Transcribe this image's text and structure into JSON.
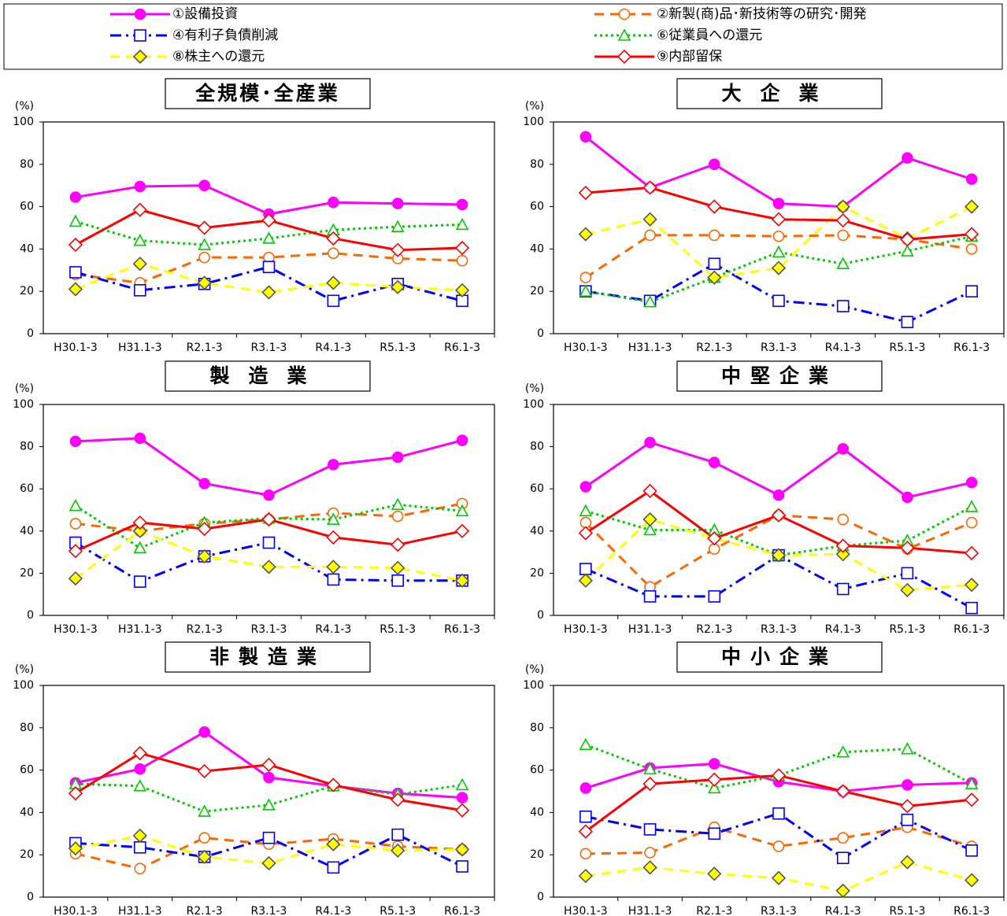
{
  "legend": {
    "series": [
      {
        "name": "①設備投資",
        "color": "#ff00ff",
        "marker": "circle",
        "marker_fill": "#ff00ff",
        "dash": "solid"
      },
      {
        "name": "②新製(商)品･新技術等の研究･開発",
        "color": "#ff6600",
        "marker": "circle",
        "marker_fill": "#ffffff",
        "dash": "dashed"
      },
      {
        "name": "④有利子負債削減",
        "color": "#0000ff",
        "marker": "square",
        "marker_fill": "#ffffff",
        "dash": "dashdot"
      },
      {
        "name": "⑥従業員への還元",
        "color": "#00cc00",
        "marker": "triangle",
        "marker_fill": "#ffffff",
        "dash": "dotted"
      },
      {
        "name": "⑧株主への還元",
        "color": "#ffff00",
        "marker": "diamond",
        "marker_fill": "#ffff00",
        "dash": "dashed"
      },
      {
        "name": "⑨内部留保",
        "color": "#ff0000",
        "marker": "diamond",
        "marker_fill": "#ffffff",
        "dash": "solid"
      }
    ]
  },
  "chart_data": [
    {
      "type": "line",
      "title": "全規模･全産業",
      "y_label": "(%)",
      "ylim": [
        0,
        100
      ],
      "yticks": [
        0,
        20,
        40,
        60,
        80,
        100
      ],
      "categories": [
        "H30.1-3",
        "H31.1-3",
        "R2.1-3",
        "R3.1-3",
        "R4.1-3",
        "R5.1-3",
        "R6.1-3"
      ],
      "series": [
        {
          "values": [
            64.5,
            69.5,
            70,
            56.5,
            62,
            61.5,
            61
          ]
        },
        {
          "values": [
            28,
            24,
            36,
            36,
            38,
            35.5,
            34.5
          ]
        },
        {
          "values": [
            29,
            20.5,
            23.5,
            31.5,
            15.5,
            23.5,
            15.5
          ]
        },
        {
          "values": [
            53,
            44,
            42,
            45,
            49,
            50.5,
            51.5
          ]
        },
        {
          "values": [
            21,
            33,
            24,
            19.5,
            24,
            22,
            20.5
          ]
        },
        {
          "values": [
            42,
            58.5,
            50,
            53.5,
            45,
            39.5,
            40.5
          ]
        }
      ]
    },
    {
      "type": "line",
      "title": "大企業",
      "y_label": "(%)",
      "ylim": [
        0,
        100
      ],
      "yticks": [
        0,
        20,
        40,
        60,
        80,
        100
      ],
      "categories": [
        "H30.1-3",
        "H31.1-3",
        "R2.1-3",
        "R3.1-3",
        "R4.1-3",
        "R5.1-3",
        "R6.1-3"
      ],
      "series": [
        {
          "values": [
            93,
            69,
            80,
            61.5,
            60,
            83,
            73
          ]
        },
        {
          "values": [
            26.5,
            46.5,
            46.5,
            46,
            46.5,
            44.5,
            40
          ]
        },
        {
          "values": [
            20,
            15.5,
            33,
            15.5,
            13,
            5.5,
            20
          ]
        },
        {
          "values": [
            20,
            15,
            26.5,
            38.5,
            33,
            39,
            46
          ]
        },
        {
          "values": [
            47,
            54,
            26.5,
            31,
            60,
            45,
            60
          ]
        },
        {
          "values": [
            66.5,
            69,
            60,
            54,
            53.5,
            44.5,
            47
          ]
        }
      ]
    },
    {
      "type": "line",
      "title": "製造業",
      "y_label": "(%)",
      "ylim": [
        0,
        100
      ],
      "yticks": [
        0,
        20,
        40,
        60,
        80,
        100
      ],
      "categories": [
        "H30.1-3",
        "H31.1-3",
        "R2.1-3",
        "R3.1-3",
        "R4.1-3",
        "R5.1-3",
        "R6.1-3"
      ],
      "series": [
        {
          "values": [
            82.5,
            84,
            62.5,
            57,
            71.5,
            75,
            83
          ]
        },
        {
          "values": [
            43.5,
            40,
            43.5,
            45.5,
            48.5,
            47,
            53
          ]
        },
        {
          "values": [
            34.5,
            16,
            28,
            34.5,
            17,
            16.5,
            16.5
          ]
        },
        {
          "values": [
            52,
            32,
            44,
            46,
            45.5,
            52.5,
            49.5
          ]
        },
        {
          "values": [
            17.5,
            40,
            28,
            23,
            23,
            22.5,
            16.5
          ]
        },
        {
          "values": [
            30.5,
            44,
            41,
            45.5,
            37,
            33.5,
            40
          ]
        }
      ]
    },
    {
      "type": "line",
      "title": "中堅企業",
      "y_label": "(%)",
      "ylim": [
        0,
        100
      ],
      "yticks": [
        0,
        20,
        40,
        60,
        80,
        100
      ],
      "categories": [
        "H30.1-3",
        "H31.1-3",
        "R2.1-3",
        "R3.1-3",
        "R4.1-3",
        "R5.1-3",
        "R6.1-3"
      ],
      "series": [
        {
          "values": [
            61,
            82,
            72.5,
            57,
            79,
            56,
            63
          ]
        },
        {
          "values": [
            44,
            13.5,
            31.5,
            47.5,
            45.5,
            31.5,
            44
          ]
        },
        {
          "values": [
            22,
            9,
            9,
            28.5,
            12.5,
            20,
            3.5
          ]
        },
        {
          "values": [
            49.5,
            40.5,
            40.5,
            28.5,
            33,
            35.5,
            51.5
          ]
        },
        {
          "values": [
            16.5,
            45.5,
            36.5,
            28.5,
            29,
            12,
            14.5
          ]
        },
        {
          "values": [
            39,
            59,
            36.5,
            47.5,
            33,
            32,
            29.5
          ]
        }
      ]
    },
    {
      "type": "line",
      "title": "非製造業",
      "y_label": "(%)",
      "ylim": [
        0,
        100
      ],
      "yticks": [
        0,
        20,
        40,
        60,
        80,
        100
      ],
      "categories": [
        "H30.1-3",
        "H31.1-3",
        "R2.1-3",
        "R3.1-3",
        "R4.1-3",
        "R5.1-3",
        "R6.1-3"
      ],
      "series": [
        {
          "values": [
            54,
            60.5,
            78,
            56.5,
            52.5,
            49,
            47
          ]
        },
        {
          "values": [
            20.5,
            13.5,
            28,
            25,
            27.5,
            24,
            22.5
          ]
        },
        {
          "values": [
            25.5,
            23.5,
            19,
            28,
            14,
            29.5,
            14.5
          ]
        },
        {
          "values": [
            53.5,
            52.5,
            40.5,
            43.5,
            52.5,
            48.5,
            53
          ]
        },
        {
          "values": [
            23,
            29,
            19,
            16,
            25,
            22,
            22.5
          ]
        },
        {
          "values": [
            49,
            68,
            59.5,
            62.5,
            53,
            46,
            41
          ]
        }
      ]
    },
    {
      "type": "line",
      "title": "中小企業",
      "y_label": "(%)",
      "ylim": [
        0,
        100
      ],
      "yticks": [
        0,
        20,
        40,
        60,
        80,
        100
      ],
      "categories": [
        "H30.1-3",
        "H31.1-3",
        "R2.1-3",
        "R3.1-3",
        "R4.1-3",
        "R5.1-3",
        "R6.1-3"
      ],
      "series": [
        {
          "values": [
            51.5,
            61,
            63,
            54.5,
            50,
            53,
            54
          ]
        },
        {
          "values": [
            20.5,
            21,
            33,
            24,
            28,
            33,
            24
          ]
        },
        {
          "values": [
            38,
            32,
            30,
            39.5,
            18.5,
            36.5,
            22
          ]
        },
        {
          "values": [
            72,
            60.5,
            51.5,
            57.5,
            68.5,
            70,
            53.5
          ]
        },
        {
          "values": [
            10,
            14,
            11,
            9,
            3,
            16.5,
            8
          ]
        },
        {
          "values": [
            31,
            53.5,
            55.5,
            57.5,
            50,
            43,
            46
          ]
        }
      ]
    }
  ]
}
